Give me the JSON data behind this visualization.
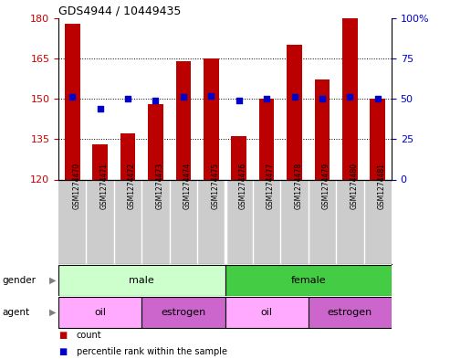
{
  "title": "GDS4944 / 10449435",
  "samples": [
    "GSM1274470",
    "GSM1274471",
    "GSM1274472",
    "GSM1274473",
    "GSM1274474",
    "GSM1274475",
    "GSM1274476",
    "GSM1274477",
    "GSM1274478",
    "GSM1274479",
    "GSM1274480",
    "GSM1274481"
  ],
  "counts": [
    178,
    133,
    137,
    148,
    164,
    165,
    136,
    150,
    170,
    157,
    180,
    150
  ],
  "percentiles": [
    51,
    44,
    50,
    49,
    51,
    52,
    49,
    50,
    51,
    50,
    51,
    50
  ],
  "ylim_left": [
    120,
    180
  ],
  "ylim_right": [
    0,
    100
  ],
  "yticks_left": [
    120,
    135,
    150,
    165,
    180
  ],
  "yticks_right": [
    0,
    25,
    50,
    75,
    100
  ],
  "ytick_right_labels": [
    "0",
    "25",
    "50",
    "75",
    "100%"
  ],
  "bar_color": "#bb0000",
  "dot_color": "#0000cc",
  "bar_width": 0.55,
  "gender_groups": [
    {
      "label": "male",
      "start": 0,
      "end": 6,
      "color": "#ccffcc"
    },
    {
      "label": "female",
      "start": 6,
      "end": 12,
      "color": "#44cc44"
    }
  ],
  "agent_groups": [
    {
      "label": "oil",
      "start": 0,
      "end": 3,
      "color": "#ffaaff"
    },
    {
      "label": "estrogen",
      "start": 3,
      "end": 6,
      "color": "#cc66cc"
    },
    {
      "label": "oil",
      "start": 6,
      "end": 9,
      "color": "#ffaaff"
    },
    {
      "label": "estrogen",
      "start": 9,
      "end": 12,
      "color": "#cc66cc"
    }
  ],
  "xlabel_bg": "#cccccc",
  "xlabel_sep_color": "#ffffff",
  "legend_count_color": "#bb0000",
  "legend_dot_color": "#0000cc",
  "bg_color": "#ffffff",
  "tick_color_left": "#cc0000",
  "tick_color_right": "#0000cc",
  "grid_yticks": [
    135,
    150,
    165
  ]
}
